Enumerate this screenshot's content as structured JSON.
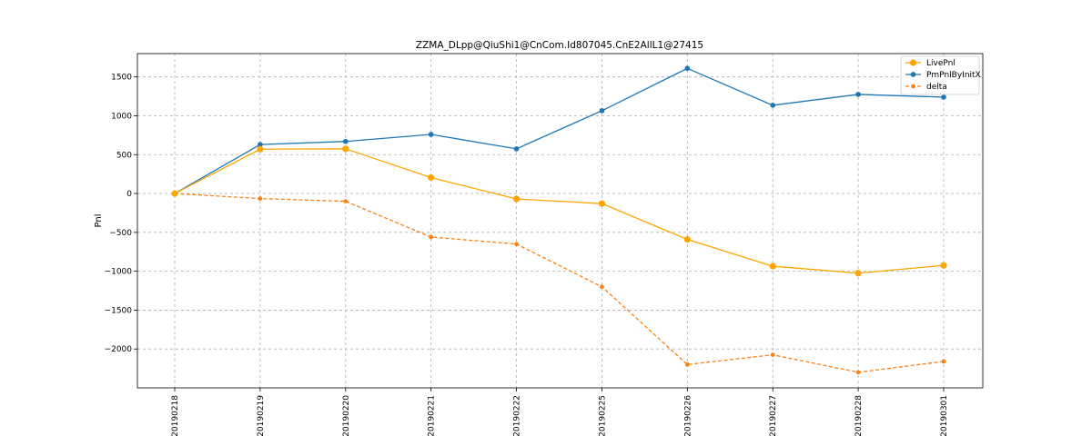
{
  "chart_data": {
    "type": "line",
    "title": "ZZMA_DLpp@QiuShi1@CnCom.Id807045.CnE2AllL1@27415",
    "xlabel": "",
    "ylabel": "Pnl",
    "categories": [
      "20190218",
      "20190219",
      "20190220",
      "20190221",
      "20190222",
      "20190225",
      "20190226",
      "20190227",
      "20190228",
      "20190301"
    ],
    "yticks": [
      1500,
      1000,
      500,
      0,
      -500,
      -1000,
      -1500,
      -2000
    ],
    "ytick_labels": [
      "1500",
      "1000",
      "500",
      "0",
      "−500",
      "−1000",
      "−1500",
      "−2000"
    ],
    "ylim": [
      -2500,
      1800
    ],
    "grid": true,
    "legend_position": "top-right",
    "series": [
      {
        "name": "LivePnl",
        "color": "#ffa500",
        "style": "solid",
        "marker_size": 6,
        "values": [
          0,
          570,
          575,
          205,
          -70,
          -130,
          -590,
          -935,
          -1025,
          -925
        ]
      },
      {
        "name": "PmPnlByInitX",
        "color": "#1f77b4",
        "style": "solid",
        "marker_size": 4.5,
        "values": [
          0,
          630,
          670,
          760,
          575,
          1065,
          1610,
          1135,
          1275,
          1240
        ]
      },
      {
        "name": "delta",
        "color": "#ff7f0e",
        "style": "dashed",
        "marker_size": 3.5,
        "values": [
          0,
          -65,
          -100,
          -560,
          -650,
          -1200,
          -2200,
          -2075,
          -2300,
          -2160
        ]
      }
    ]
  }
}
